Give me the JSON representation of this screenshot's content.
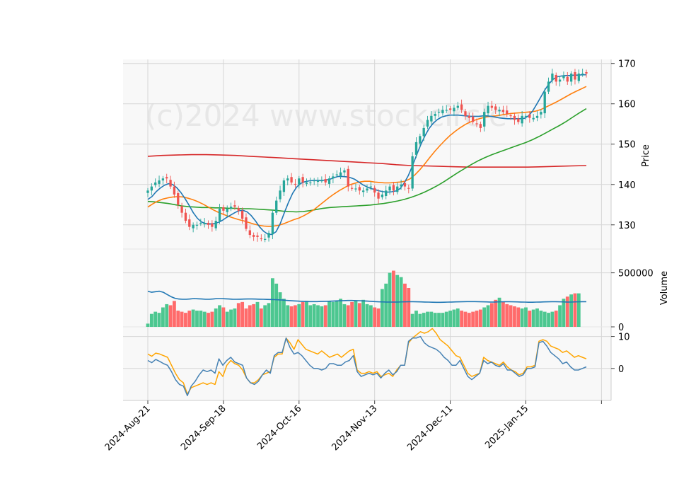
{
  "watermark": "(c)2024 www.stockcircle",
  "chart_data": {
    "type": "candlestick",
    "panels": {
      "price": {
        "ylabel": "Price",
        "ylim": [
          124,
          171
        ],
        "ticks": [
          130,
          140,
          150,
          160,
          170
        ]
      },
      "volume": {
        "ylabel": "Volume",
        "ylim": [
          0,
          720000
        ],
        "ticks": [
          0,
          500000
        ]
      },
      "oscillator": {
        "ylabel": "",
        "ylim": [
          -10,
          13
        ],
        "ticks": [
          0,
          10
        ]
      }
    },
    "x_ticks": [
      {
        "index": 0,
        "label": "2024-Aug-21"
      },
      {
        "index": 20,
        "label": "2024-Sep-18"
      },
      {
        "index": 40,
        "label": "2024-Oct-16"
      },
      {
        "index": 60,
        "label": "2024-Nov-13"
      },
      {
        "index": 80,
        "label": "2024-Dec-11"
      },
      {
        "index": 100,
        "label": "2025-Jan-15"
      }
    ],
    "closes": [
      138.5,
      139.5,
      140.5,
      141,
      141.5,
      141.5,
      139.5,
      137.5,
      135.0,
      133.0,
      131.0,
      129.5,
      130.0,
      130.0,
      130.5,
      130.5,
      130.0,
      129.5,
      131.0,
      134.0,
      133.5,
      134.0,
      134.5,
      134.5,
      133.5,
      131.5,
      129.0,
      127.5,
      127.0,
      127.0,
      126.5,
      126.5,
      128.0,
      133.0,
      136.0,
      138.5,
      141.0,
      141.5,
      140.5,
      140.0,
      141.5,
      140.5,
      140.5,
      140.5,
      141.0,
      141.0,
      141.0,
      140.5,
      141.5,
      142.0,
      142.5,
      143.0,
      143.5,
      139.5,
      139.0,
      139.0,
      138.5,
      138.5,
      139.0,
      139.5,
      138.0,
      136.5,
      137.5,
      138.5,
      139.5,
      138.5,
      139.5,
      140.0,
      139.5,
      139.0,
      147.0,
      150.5,
      152.0,
      154.0,
      156.0,
      157.0,
      157.5,
      158.0,
      158.5,
      158.5,
      158.5,
      159.0,
      159.5,
      158.5,
      157.0,
      156.5,
      155.5,
      155.0,
      154.0,
      158.0,
      159.5,
      159.0,
      158.5,
      158.5,
      158.0,
      157.5,
      157.0,
      156.0,
      155.5,
      157.0,
      157.0,
      156.5,
      156.5,
      157.0,
      158.0,
      163.0,
      165.5,
      167.5,
      165.5,
      166.0,
      167.0,
      165.5,
      167.5,
      166.0,
      167.5,
      167.5,
      167.5
    ],
    "ma_fast": [
      136.3,
      137.0,
      138.2,
      139.1,
      139.8,
      140.2,
      140.0,
      139.2,
      138.0,
      136.5,
      134.8,
      133.0,
      131.6,
      130.7,
      130.3,
      130.2,
      130.3,
      130.6,
      131.1,
      131.8,
      132.4,
      133.0,
      133.5,
      133.6,
      133.2,
      132.3,
      131.0,
      129.5,
      128.4,
      127.7,
      127.6,
      128.3,
      130.3,
      133.0,
      135.6,
      137.8,
      139.4,
      140.3,
      140.7,
      140.9,
      141.0,
      141.0,
      141.0,
      141.1,
      141.3,
      141.7,
      142.0,
      142.0,
      141.9,
      141.7,
      141.3,
      140.6,
      139.9,
      139.4,
      139.0,
      138.7,
      138.4,
      138.2,
      138.1,
      138.2,
      138.4,
      139.0,
      140.4,
      142.3,
      144.7,
      147.4,
      149.9,
      152.1,
      153.9,
      155.2,
      156.1,
      156.7,
      157.0,
      157.2,
      157.2,
      157.2,
      157.1,
      157.0,
      156.9,
      156.9,
      156.9,
      157.0,
      157.0,
      156.9,
      156.7,
      156.5,
      156.4,
      156.3,
      156.3,
      156.3,
      156.3,
      156.4,
      157.0,
      158.2,
      159.9,
      161.7,
      163.5,
      165.0,
      166.1,
      166.7,
      166.9,
      167.0,
      167.0,
      167.1,
      167.1,
      167.2,
      167.2
    ],
    "ma_mid": [
      134.4,
      135.2,
      135.9,
      136.4,
      136.7,
      136.9,
      137.0,
      136.9,
      136.6,
      136.2,
      135.7,
      135.1,
      134.4,
      133.7,
      133.1,
      132.6,
      132.1,
      131.7,
      131.3,
      131.0,
      130.6,
      130.2,
      129.9,
      129.7,
      129.6,
      129.7,
      129.9,
      130.3,
      130.8,
      131.3,
      131.7,
      132.3,
      133.0,
      133.8,
      134.8,
      135.8,
      136.8,
      137.7,
      138.5,
      139.2,
      139.9,
      140.3,
      140.6,
      140.8,
      140.8,
      140.6,
      140.5,
      140.4,
      140.4,
      140.5,
      140.6,
      140.8,
      141.4,
      142.4,
      143.7,
      145.2,
      146.8,
      148.3,
      149.7,
      151.0,
      152.2,
      153.2,
      154.1,
      154.9,
      155.5,
      156.0,
      156.4,
      156.7,
      156.9,
      157.0,
      157.2,
      157.4,
      157.6,
      157.7,
      157.8,
      157.9,
      158.0,
      158.2,
      158.6,
      159.2,
      159.8,
      160.4,
      161.1,
      161.8,
      162.5,
      163.1,
      163.7,
      164.3
    ],
    "ma_slow": [
      135.8,
      135.7,
      135.5,
      135.3,
      135.0,
      134.7,
      134.5,
      134.4,
      134.3,
      134.3,
      134.2,
      134.2,
      134.1,
      134.1,
      134.0,
      134.0,
      133.9,
      133.8,
      133.7,
      133.6,
      133.4,
      133.3,
      133.2,
      133.3,
      133.5,
      133.8,
      134.1,
      134.3,
      134.4,
      134.5,
      134.6,
      134.7,
      134.8,
      134.9,
      135.1,
      135.3,
      135.6,
      135.9,
      136.3,
      136.8,
      137.4,
      138.1,
      138.9,
      139.8,
      140.8,
      141.9,
      143.0,
      144.0,
      145.0,
      145.9,
      146.7,
      147.4,
      148.0,
      148.6,
      149.2,
      149.8,
      150.4,
      151.1,
      151.9,
      152.8,
      153.7,
      154.6,
      155.6,
      156.7,
      157.8,
      158.8
    ],
    "ma_long": [
      147.0,
      147.2,
      147.3,
      147.4,
      147.4,
      147.3,
      147.2,
      147.0,
      146.8,
      146.6,
      146.4,
      146.2,
      146.0,
      145.8,
      145.6,
      145.4,
      145.2,
      144.9,
      144.7,
      144.6,
      144.5,
      144.4,
      144.3,
      144.3,
      144.3,
      144.3,
      144.3,
      144.4,
      144.5,
      144.6,
      144.7
    ],
    "volumes": [
      30000,
      120000,
      140000,
      130000,
      180000,
      210000,
      200000,
      240000,
      150000,
      140000,
      130000,
      150000,
      160000,
      150000,
      150000,
      140000,
      130000,
      140000,
      170000,
      200000,
      180000,
      140000,
      160000,
      170000,
      220000,
      230000,
      170000,
      200000,
      210000,
      230000,
      170000,
      200000,
      220000,
      450000,
      400000,
      320000,
      260000,
      200000,
      190000,
      200000,
      210000,
      230000,
      240000,
      200000,
      210000,
      200000,
      190000,
      200000,
      240000,
      230000,
      240000,
      260000,
      210000,
      200000,
      230000,
      240000,
      220000,
      250000,
      210000,
      200000,
      180000,
      170000,
      350000,
      400000,
      500000,
      520000,
      480000,
      460000,
      400000,
      360000,
      120000,
      150000,
      120000,
      130000,
      140000,
      140000,
      130000,
      130000,
      130000,
      140000,
      150000,
      160000,
      170000,
      150000,
      140000,
      130000,
      140000,
      150000,
      160000,
      180000,
      200000,
      220000,
      250000,
      270000,
      230000,
      210000,
      200000,
      190000,
      180000,
      170000,
      180000,
      150000,
      160000,
      170000,
      150000,
      140000,
      130000,
      140000,
      150000,
      200000,
      260000,
      280000,
      300000,
      310000,
      310000
    ],
    "vol_ma": [
      330000,
      320000,
      325000,
      330000,
      320000,
      300000,
      280000,
      265000,
      258000,
      255000,
      255000,
      258000,
      262000,
      260000,
      258000,
      255000,
      255000,
      258000,
      262000,
      262000,
      260000,
      258000,
      256000,
      255000,
      256000,
      257000,
      258000,
      258000,
      257000,
      256000,
      255000,
      254000,
      253000,
      252000,
      250000,
      248000,
      245000,
      243000,
      240000,
      238000,
      236000,
      235000,
      234000,
      234000,
      234000,
      235000,
      236000,
      237000,
      238000,
      240000,
      242000,
      243000,
      244000,
      244000,
      243000,
      242000,
      240000,
      238000,
      236000,
      234000,
      232000,
      231000,
      230000,
      230000,
      230000,
      230000,
      231000,
      232000,
      233000,
      233000,
      232000,
      231000,
      230000,
      229000,
      228000,
      227000,
      227000,
      228000,
      229000,
      230000,
      231000,
      232000,
      233000,
      234000,
      234000,
      234000,
      233000,
      232000,
      231000,
      230000,
      230000,
      231000,
      232000,
      233000,
      233000,
      232000,
      231000,
      230000,
      229000,
      228000,
      228000,
      229000,
      230000,
      231000,
      232000,
      233000,
      233000,
      232000,
      231000,
      230000,
      230000,
      231000,
      232000,
      233000,
      233000
    ],
    "osc_blue": [
      2.5,
      1.8,
      2.8,
      2.2,
      1.5,
      1.0,
      -1.0,
      -3.5,
      -5.0,
      -5.5,
      -8.5,
      -5.5,
      -4.0,
      -2.0,
      -0.5,
      -1.0,
      -0.5,
      -1.5,
      3.0,
      1.0,
      2.5,
      3.5,
      2.0,
      1.5,
      1.0,
      -3.0,
      -4.5,
      -5.0,
      -4.0,
      -2.0,
      -0.5,
      -1.5,
      4.0,
      5.0,
      5.0,
      9.5,
      6.5,
      4.5,
      5.0,
      4.0,
      2.5,
      1.0,
      0.0,
      0.0,
      -0.5,
      0.0,
      1.5,
      1.5,
      1.0,
      1.0,
      2.0,
      2.5,
      4.0,
      -1.0,
      -2.5,
      -2.0,
      -1.5,
      -2.0,
      -1.5,
      -3.0,
      -1.5,
      -0.5,
      -2.0,
      -1.0,
      1.0,
      1.0,
      8.5,
      9.5,
      9.5,
      10.0,
      8.0,
      7.0,
      6.5,
      6.0,
      5.0,
      3.5,
      2.5,
      1.0,
      1.0,
      2.5,
      0.0,
      -2.5,
      -3.5,
      -2.5,
      -1.5,
      2.5,
      1.5,
      2.0,
      1.0,
      0.5,
      1.5,
      -0.5,
      -0.5,
      -1.5,
      -2.5,
      -2.0,
      0.0,
      0.0,
      0.5,
      8.0,
      8.5,
      7.0,
      5.0,
      4.0,
      3.0,
      1.5,
      2.0,
      0.5,
      -0.5,
      -0.5,
      0.0,
      0.5
    ],
    "osc_orange": [
      4.5,
      3.8,
      4.8,
      4.5,
      4.0,
      3.5,
      1.0,
      -1.5,
      -3.5,
      -4.5,
      -8.0,
      -6.0,
      -5.5,
      -5.0,
      -4.5,
      -5.0,
      -4.5,
      -5.0,
      -1.0,
      -2.5,
      1.0,
      2.5,
      1.5,
      1.0,
      -0.5,
      -3.0,
      -4.5,
      -4.5,
      -3.5,
      -2.0,
      -1.5,
      -1.0,
      3.5,
      4.5,
      4.5,
      9.5,
      8.0,
      6.0,
      9.0,
      7.5,
      6.0,
      5.5,
      5.0,
      4.5,
      5.5,
      4.5,
      3.5,
      4.0,
      4.5,
      3.5,
      4.5,
      5.5,
      6.0,
      -0.5,
      -1.5,
      -1.5,
      -1.0,
      -1.5,
      -1.0,
      -2.5,
      -2.0,
      -1.5,
      -2.5,
      -0.5,
      1.0,
      1.0,
      8.0,
      9.5,
      10.5,
      11.5,
      11.0,
      11.5,
      12.5,
      11.0,
      9.0,
      8.0,
      7.0,
      5.5,
      4.0,
      3.5,
      1.0,
      -1.5,
      -2.5,
      -2.0,
      -1.5,
      3.5,
      2.5,
      2.0,
      1.5,
      1.0,
      2.0,
      0.5,
      -0.5,
      -1.0,
      -2.0,
      -1.5,
      0.5,
      0.5,
      1.0,
      8.5,
      9.0,
      8.5,
      7.0,
      6.5,
      6.0,
      5.0,
      5.5,
      4.5,
      3.5,
      4.0,
      3.5,
      3.0
    ],
    "series_colors": {
      "up": "#26a69a",
      "down": "#ef5350",
      "ma_fast": "#1f77b4",
      "ma_mid": "#ff7f0e",
      "ma_slow": "#2ca02c",
      "ma_long": "#d62728",
      "vol_ma": "#1f77b4",
      "osc_blue": "#4682b4",
      "osc_orange": "#ffa500"
    }
  }
}
